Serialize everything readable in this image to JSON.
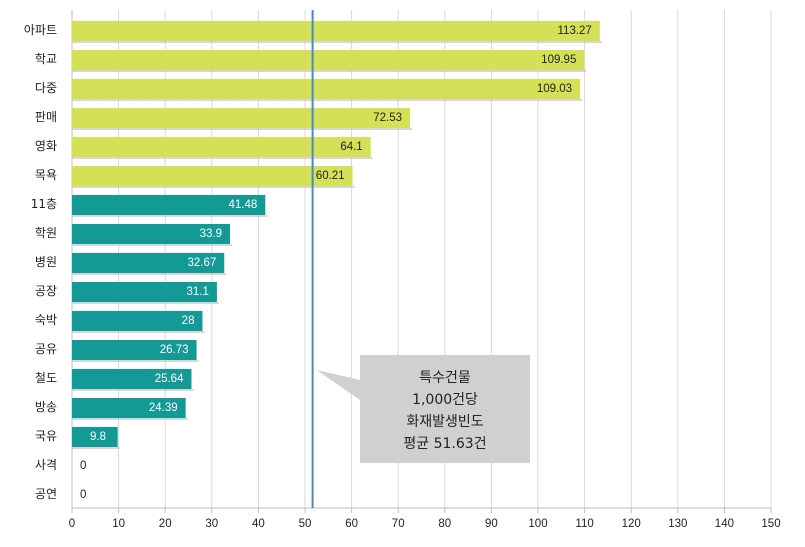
{
  "chart_data": {
    "type": "bar",
    "orientation": "horizontal",
    "title": "",
    "xlabel": "",
    "ylabel": "",
    "xlim": [
      0,
      150
    ],
    "xticks": [
      0,
      10,
      20,
      30,
      40,
      50,
      60,
      70,
      80,
      90,
      100,
      110,
      120,
      130,
      140,
      150
    ],
    "grid": "vertical",
    "categories": [
      "아파트",
      "학교",
      "다중",
      "판매",
      "영화",
      "목욕",
      "11층",
      "학원",
      "병원",
      "공장",
      "숙박",
      "공유",
      "철도",
      "방송",
      "국유",
      "사격",
      "공연"
    ],
    "values": [
      113.27,
      109.95,
      109.03,
      72.53,
      64.1,
      60.21,
      41.48,
      33.9,
      32.67,
      31.1,
      28,
      26.73,
      25.64,
      24.39,
      9.8,
      0,
      0
    ],
    "value_labels": [
      "113.27",
      "109.95",
      "109.03",
      "72.53",
      "64.1",
      "60.21",
      "41.48",
      "33.9",
      "32.67",
      "31.1",
      "28",
      "26.73",
      "25.64",
      "24.39",
      "9.8",
      "0",
      "0"
    ],
    "bar_colors": [
      "#d4e157",
      "#d4e157",
      "#d4e157",
      "#d4e157",
      "#d4e157",
      "#d4e157",
      "#149a96",
      "#149a96",
      "#149a96",
      "#149a96",
      "#149a96",
      "#149a96",
      "#149a96",
      "#149a96",
      "#149a96",
      "#149a96",
      "#149a96"
    ],
    "reference_line": {
      "value": 51.63,
      "color": "#4f86c6"
    },
    "annotation": {
      "lines": [
        "특수건물",
        "1,000건당",
        "화재발생빈도",
        "평균 51.63건"
      ]
    }
  }
}
